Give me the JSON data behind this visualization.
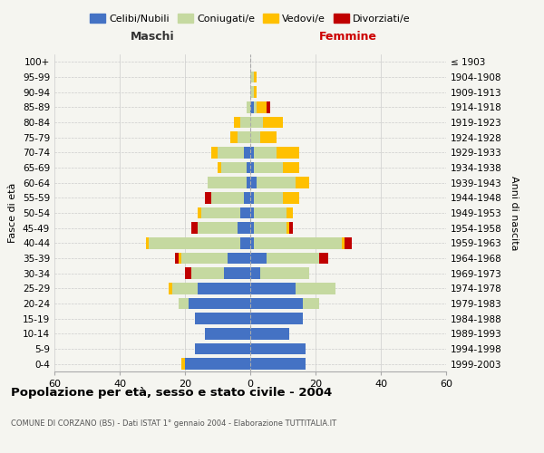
{
  "age_groups": [
    "0-4",
    "5-9",
    "10-14",
    "15-19",
    "20-24",
    "25-29",
    "30-34",
    "35-39",
    "40-44",
    "45-49",
    "50-54",
    "55-59",
    "60-64",
    "65-69",
    "70-74",
    "75-79",
    "80-84",
    "85-89",
    "90-94",
    "95-99",
    "100+"
  ],
  "birth_years": [
    "1999-2003",
    "1994-1998",
    "1989-1993",
    "1984-1988",
    "1979-1983",
    "1974-1978",
    "1969-1973",
    "1964-1968",
    "1959-1963",
    "1954-1958",
    "1949-1953",
    "1944-1948",
    "1939-1943",
    "1934-1938",
    "1929-1933",
    "1924-1928",
    "1919-1923",
    "1914-1918",
    "1909-1913",
    "1904-1908",
    "≤ 1903"
  ],
  "male": {
    "celibi": [
      20,
      17,
      14,
      17,
      19,
      16,
      8,
      7,
      3,
      4,
      3,
      2,
      1,
      1,
      2,
      0,
      0,
      0,
      0,
      0,
      0
    ],
    "coniugati": [
      0,
      0,
      0,
      0,
      3,
      8,
      10,
      14,
      28,
      12,
      12,
      10,
      12,
      8,
      8,
      4,
      3,
      1,
      0,
      0,
      0
    ],
    "vedovi": [
      1,
      0,
      0,
      0,
      0,
      1,
      0,
      1,
      1,
      0,
      1,
      0,
      0,
      1,
      2,
      2,
      2,
      0,
      0,
      0,
      0
    ],
    "divorziati": [
      0,
      0,
      0,
      0,
      0,
      0,
      2,
      1,
      0,
      2,
      0,
      2,
      0,
      0,
      0,
      0,
      0,
      0,
      0,
      0,
      0
    ]
  },
  "female": {
    "nubili": [
      17,
      17,
      12,
      16,
      16,
      14,
      3,
      5,
      1,
      1,
      1,
      1,
      2,
      1,
      1,
      0,
      0,
      1,
      0,
      0,
      0
    ],
    "coniugate": [
      0,
      0,
      0,
      0,
      5,
      12,
      15,
      16,
      27,
      10,
      10,
      9,
      12,
      9,
      7,
      3,
      4,
      1,
      1,
      1,
      0
    ],
    "vedove": [
      0,
      0,
      0,
      0,
      0,
      0,
      0,
      0,
      1,
      1,
      2,
      5,
      4,
      5,
      7,
      5,
      6,
      3,
      1,
      1,
      0
    ],
    "divorziate": [
      0,
      0,
      0,
      0,
      0,
      0,
      0,
      3,
      2,
      1,
      0,
      0,
      0,
      0,
      0,
      0,
      0,
      1,
      0,
      0,
      0
    ]
  },
  "colors": {
    "celibi": "#4472c4",
    "coniugati": "#c5d9a0",
    "vedovi": "#ffc000",
    "divorziati": "#c00000"
  },
  "xlim": 60,
  "title": "Popolazione per età, sesso e stato civile - 2004",
  "subtitle": "COMUNE DI CORZANO (BS) - Dati ISTAT 1° gennaio 2004 - Elaborazione TUTTITALIA.IT",
  "ylabel_left": "Fasce di età",
  "ylabel_right": "Anni di nascita",
  "xlabel_left": "Maschi",
  "xlabel_right": "Femmine",
  "legend_labels": [
    "Celibi/Nubili",
    "Coniugati/e",
    "Vedovi/e",
    "Divorziati/e"
  ],
  "background_color": "#f5f5f0",
  "grid_color": "#cccccc",
  "bar_height": 0.75
}
